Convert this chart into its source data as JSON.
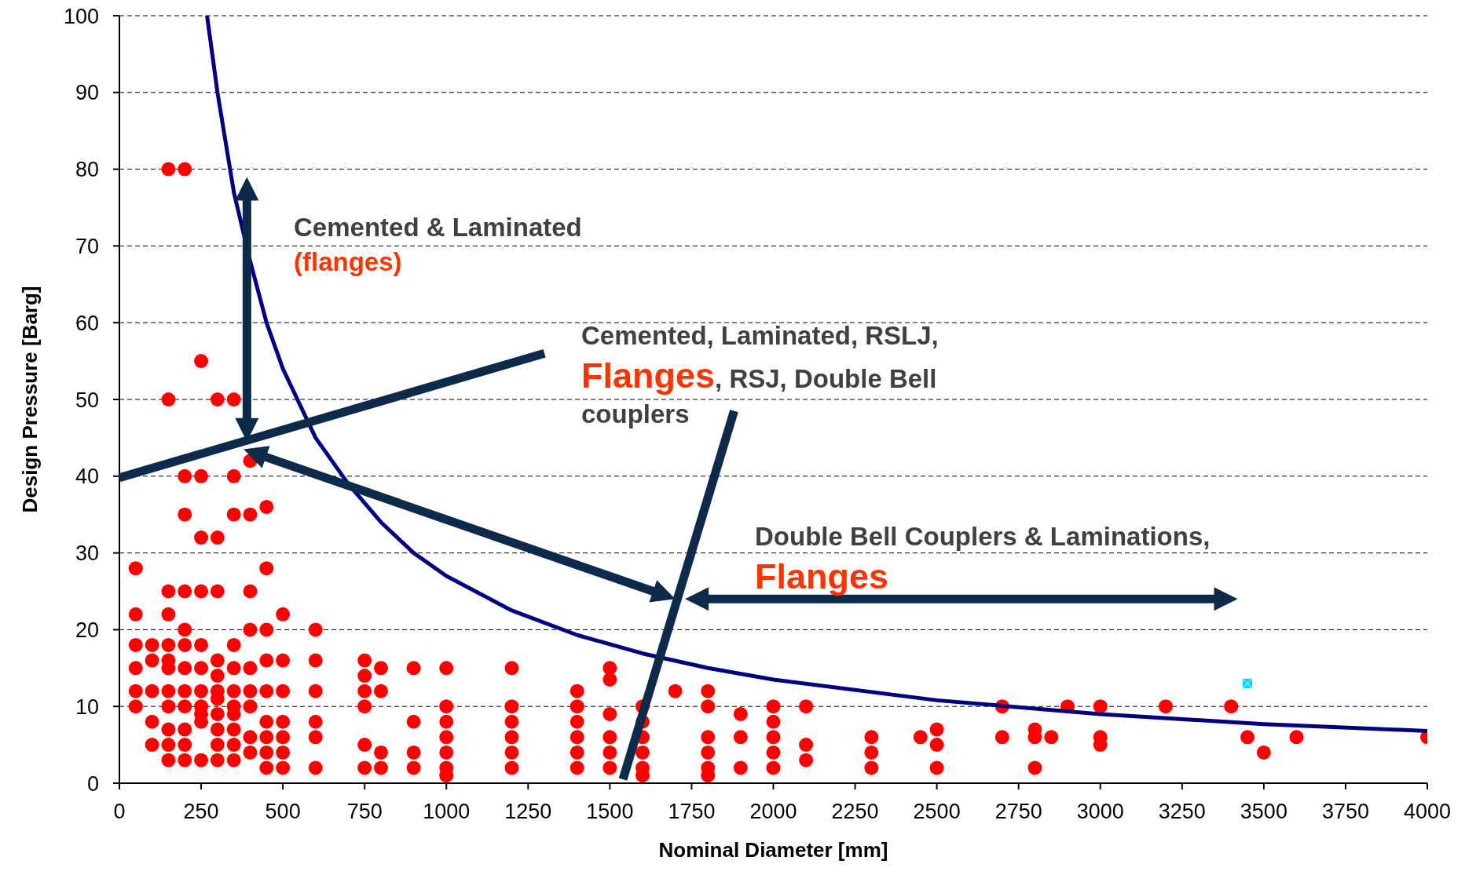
{
  "chart_data": {
    "type": "scatter",
    "xlabel": "Nominal Diameter [mm]",
    "ylabel": "Design Pressure [Barg]",
    "xlim": [
      0,
      4000
    ],
    "xticks": [
      0,
      250,
      500,
      750,
      1000,
      1250,
      1500,
      1750,
      2000,
      2250,
      2500,
      2750,
      3000,
      3250,
      3500,
      3750,
      4000
    ],
    "ylim": [
      0,
      100
    ],
    "yticks": [
      0,
      10,
      20,
      30,
      40,
      50,
      60,
      70,
      80,
      90,
      100
    ],
    "grid": "y",
    "legend": false,
    "marker": "circle",
    "annotations": [
      "Cemented & Laminated",
      "(flanges)",
      "Cemented, Laminated, RSLJ,",
      "Flanges",
      ", RSJ, Double Bell",
      "couplers",
      "Double Bell Couplers & Laminations,",
      "Flanges"
    ],
    "series": [
      {
        "color": "#ff0000",
        "x": [
          50,
          50,
          50,
          50,
          50,
          50,
          100,
          100,
          100,
          100,
          100,
          150,
          150,
          150,
          150,
          150,
          150,
          150,
          150,
          150,
          150,
          150,
          150,
          200,
          200,
          200,
          200,
          200,
          200,
          200,
          200,
          200,
          200,
          200,
          200,
          250,
          250,
          250,
          250,
          250,
          250,
          250,
          250,
          250,
          250,
          250,
          300,
          300,
          300,
          300,
          300,
          300,
          300,
          300,
          300,
          300,
          300,
          350,
          350,
          350,
          350,
          350,
          350,
          350,
          350,
          350,
          350,
          350,
          400,
          400,
          400,
          400,
          400,
          400,
          400,
          400,
          400,
          450,
          450,
          450,
          450,
          450,
          450,
          450,
          450,
          450,
          500,
          500,
          500,
          500,
          500,
          500,
          500,
          600,
          600,
          600,
          600,
          600,
          600,
          750,
          750,
          750,
          750,
          750,
          750,
          800,
          800,
          800,
          800,
          900,
          900,
          900,
          900,
          1000,
          1000,
          1000,
          1000,
          1000,
          1000,
          1000,
          1200,
          1200,
          1200,
          1200,
          1200,
          1200,
          1400,
          1400,
          1400,
          1400,
          1400,
          1400,
          1500,
          1500,
          1500,
          1500,
          1500,
          1500,
          1600,
          1600,
          1600,
          1600,
          1600,
          1600,
          1700,
          1800,
          1800,
          1800,
          1800,
          1800,
          1800,
          1900,
          1900,
          1900,
          2000,
          2000,
          2000,
          2000,
          2000,
          2100,
          2100,
          2100,
          2300,
          2300,
          2300,
          2450,
          2500,
          2500,
          2500,
          2700,
          2700,
          2800,
          2800,
          2800,
          2850,
          2900,
          3000,
          3000,
          3000,
          3200,
          3400,
          3450,
          3500,
          3600,
          4000
        ],
        "values": [
          28,
          22,
          18,
          15,
          12,
          10,
          18,
          16,
          12,
          8,
          5,
          80,
          50,
          25,
          22,
          18,
          16,
          15,
          12,
          10,
          7,
          5,
          3,
          80,
          40,
          35,
          25,
          20,
          18,
          15,
          12,
          10,
          7,
          5,
          3,
          55,
          40,
          32,
          25,
          18,
          15,
          12,
          10,
          9,
          8,
          3,
          50,
          32,
          25,
          16,
          14,
          12,
          11,
          9,
          7,
          5,
          3,
          50,
          40,
          35,
          18,
          15,
          12,
          10,
          9,
          7,
          5,
          3,
          42,
          35,
          25,
          20,
          15,
          12,
          10,
          6,
          4,
          36,
          28,
          20,
          16,
          12,
          8,
          6,
          4,
          2,
          22,
          16,
          12,
          8,
          6,
          4,
          2,
          20,
          16,
          12,
          8,
          6,
          2,
          16,
          14,
          12,
          10,
          5,
          2,
          15,
          12,
          4,
          2,
          15,
          8,
          4,
          2,
          15,
          10,
          8,
          6,
          4,
          2,
          1,
          15,
          10,
          8,
          6,
          4,
          2,
          12,
          10,
          8,
          6,
          4,
          2,
          15,
          13.5,
          9,
          6,
          4,
          2,
          10,
          8,
          6,
          4,
          2,
          1,
          12,
          12,
          10,
          6,
          4,
          2,
          1,
          9,
          6,
          2,
          10,
          8,
          6,
          4,
          2,
          10,
          5,
          3,
          6,
          4,
          2,
          6,
          7,
          5,
          2,
          10,
          6,
          7,
          6,
          2,
          6,
          10,
          10,
          6,
          5,
          10,
          10,
          6,
          4,
          6,
          6
        ]
      },
      {
        "type": "scatter",
        "color": "#00ccff",
        "marker": "square",
        "x": [
          3450
        ],
        "values": [
          13
        ]
      },
      {
        "type": "line",
        "color": "#000080",
        "marker": "none",
        "x": [
          268,
          300,
          350,
          400,
          450,
          500,
          600,
          700,
          800,
          900,
          1000,
          1200,
          1400,
          1600,
          1800,
          2000,
          2500,
          3000,
          3500,
          4000
        ],
        "values": [
          100,
          90,
          77,
          68,
          60,
          54,
          45,
          39,
          34,
          30,
          27,
          22.5,
          19.3,
          16.9,
          15,
          13.5,
          10.8,
          9,
          7.7,
          6.8
        ]
      }
    ]
  }
}
